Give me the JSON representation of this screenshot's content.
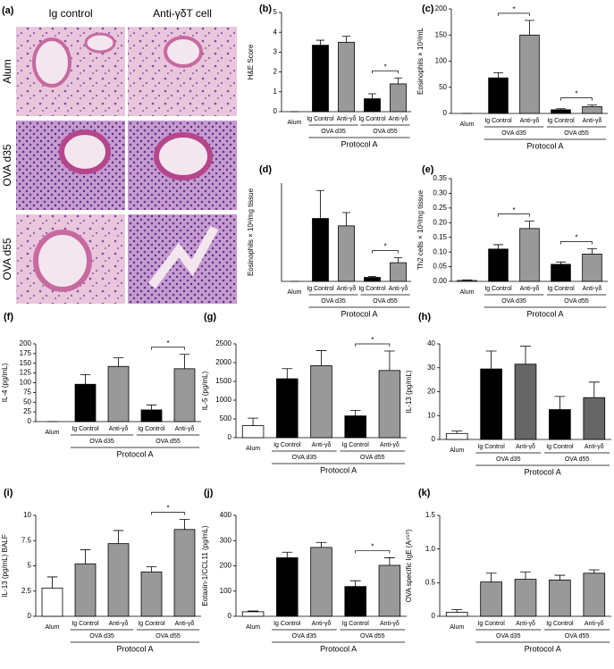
{
  "image_panel": {
    "label": "(a)",
    "columns": [
      "Ig control",
      "Anti-γδT cell"
    ],
    "rows": [
      "Alum",
      "OVA d35",
      "OVA d55"
    ]
  },
  "chart_data": [
    {
      "type": "bar",
      "panel_label": "(b)",
      "ylabel": "H&E Score",
      "categories": [
        "Alum",
        "Ig Control",
        "Anti-γδ",
        "Ig Control",
        "Anti-γδ"
      ],
      "values": [
        0,
        3.35,
        3.5,
        0.65,
        1.4
      ],
      "errors": [
        0,
        0.25,
        0.3,
        0.25,
        0.3
      ],
      "colors": [
        "#ffffff",
        "#000000",
        "#999999",
        "#000000",
        "#999999"
      ],
      "ylim": [
        0,
        5
      ],
      "yticks": [
        0,
        1,
        2,
        3,
        4,
        5
      ],
      "groups": [
        {
          "label": "OVA d35",
          "significance": null
        },
        {
          "label": "OVA d55",
          "significance": "*"
        }
      ],
      "xlabel": "Protocol A"
    },
    {
      "type": "bar",
      "panel_label": "(c)",
      "ylabel": "Eosinophils × 10³/mL",
      "categories": [
        "Alum",
        "Ig Control",
        "Anti-γδ",
        "Ig Control",
        "Anti-γδ"
      ],
      "values": [
        0,
        68,
        150,
        7,
        13
      ],
      "errors": [
        0,
        10,
        28,
        2,
        3
      ],
      "colors": [
        "#ffffff",
        "#000000",
        "#999999",
        "#000000",
        "#999999"
      ],
      "ylim": [
        0,
        200
      ],
      "yticks": [
        0,
        50,
        100,
        150,
        200
      ],
      "groups": [
        {
          "label": "OVA d35",
          "significance": "*"
        },
        {
          "label": "OVA d55",
          "significance": "*"
        }
      ],
      "xlabel": "Protocol A"
    },
    {
      "type": "bar",
      "panel_label": "(d)",
      "ylabel": "Eosinophils × 10³/mg tissue",
      "categories": [
        "Alum",
        "Ig Control",
        "Anti-γδ",
        "Ig Control",
        "Anti-γδ"
      ],
      "values": [
        0,
        128,
        113,
        8,
        38
      ],
      "errors": [
        0,
        57,
        27,
        2,
        10
      ],
      "colors": [
        "#ffffff",
        "#000000",
        "#999999",
        "#000000",
        "#999999"
      ],
      "ylim": [
        0,
        200
      ],
      "groups": [
        {
          "label": "OVA d35",
          "significance": null
        },
        {
          "label": "OVA d55",
          "significance": "*"
        }
      ],
      "xlabel": "Protocol A"
    },
    {
      "type": "bar",
      "panel_label": "(e)",
      "ylabel": "Th2 cells × 10³/mg tissue",
      "categories": [
        "Alum",
        "Ig Control",
        "Anti-γδ",
        "Ig Control",
        "Anti-γδ"
      ],
      "values": [
        0.003,
        0.11,
        0.18,
        0.058,
        0.093
      ],
      "errors": [
        0.002,
        0.015,
        0.025,
        0.008,
        0.018
      ],
      "colors": [
        "#ffffff",
        "#000000",
        "#999999",
        "#000000",
        "#999999"
      ],
      "ylim": [
        0,
        0.35
      ],
      "yticks": [
        {
          "value": 0,
          "label": "0.00"
        },
        {
          "value": 0.05,
          "label": "0.05"
        },
        {
          "value": 0.1,
          "label": "0.10"
        },
        {
          "value": 0.15,
          "label": "0.15"
        },
        {
          "value": 0.2,
          "label": "0.20"
        },
        {
          "value": 0.25,
          "label": "0.25"
        },
        {
          "value": 0.3,
          "label": "0.30"
        },
        {
          "value": 0.35,
          "label": "0.35"
        }
      ],
      "groups": [
        {
          "label": "OVA d35",
          "significance": "*"
        },
        {
          "label": "OVA d55",
          "significance": "*"
        }
      ],
      "xlabel": "Protocol A"
    },
    {
      "type": "bar",
      "panel_label": "(f)",
      "ylabel": "IL-4 (pg/mL)",
      "categories": [
        "Alum",
        "Ig Control",
        "Anti-γδ",
        "Ig Control",
        "Anti-γδ"
      ],
      "values": [
        0,
        96,
        142,
        30,
        136
      ],
      "errors": [
        0,
        25,
        22,
        13,
        37
      ],
      "colors": [
        "#ffffff",
        "#000000",
        "#999999",
        "#000000",
        "#999999"
      ],
      "ylim": [
        0,
        200
      ],
      "yticks": [
        0,
        25,
        50,
        75,
        100,
        125,
        150,
        175,
        200
      ],
      "groups": [
        {
          "label": "OVA d35",
          "significance": null
        },
        {
          "label": "OVA d55",
          "significance": "*"
        }
      ],
      "xlabel": "Protocol A"
    },
    {
      "type": "bar",
      "panel_label": "(g)",
      "ylabel": "IL-5 (pg/mL)",
      "categories": [
        "Alum",
        "Ig Control",
        "Anti-γδ",
        "Ig Control",
        "Anti-γδ"
      ],
      "values": [
        320,
        1570,
        1920,
        580,
        1790
      ],
      "errors": [
        200,
        270,
        400,
        150,
        520
      ],
      "colors": [
        "#ffffff",
        "#000000",
        "#999999",
        "#000000",
        "#999999"
      ],
      "ylim": [
        0,
        2500
      ],
      "yticks": [
        0,
        500,
        1000,
        1500,
        2000,
        2500
      ],
      "groups": [
        {
          "label": "OVA d35",
          "significance": null
        },
        {
          "label": "OVA d55",
          "significance": "*"
        }
      ],
      "xlabel": "Protocol A"
    },
    {
      "type": "bar",
      "panel_label": "(h)",
      "ylabel": "IL-13 (pg/mL)",
      "categories": [
        "Alum",
        "Ig Control",
        "Anti-γδ",
        "Ig Control",
        "Anti-γδ"
      ],
      "values": [
        2.5,
        29.5,
        31.5,
        12.5,
        17.5
      ],
      "errors": [
        1,
        7.5,
        7.5,
        5.5,
        6.5
      ],
      "colors": [
        "#ffffff",
        "#000000",
        "#666666",
        "#000000",
        "#666666"
      ],
      "ylim": [
        0,
        40
      ],
      "yticks": [
        0,
        10,
        20,
        30,
        40
      ],
      "groups": [
        {
          "label": "OVA d35",
          "significance": null
        },
        {
          "label": "OVA d55",
          "significance": null
        }
      ],
      "xlabel": "Protocol A"
    },
    {
      "type": "bar",
      "panel_label": "(i)",
      "ylabel": "IL-13 (pg/mL) BALF",
      "categories": [
        "Alum",
        "Ig Control",
        "Anti-γδ",
        "Ig Control",
        "Anti-γδ"
      ],
      "values": [
        2.8,
        5.2,
        7.2,
        4.4,
        8.6
      ],
      "errors": [
        1.1,
        1.4,
        1.3,
        0.5,
        1.0
      ],
      "colors": [
        "#ffffff",
        "#999999",
        "#999999",
        "#999999",
        "#999999"
      ],
      "ylim": [
        0,
        10
      ],
      "yticks": [
        0,
        2.5,
        5,
        7.5,
        10
      ],
      "groups": [
        {
          "label": "OVA d35",
          "significance": null
        },
        {
          "label": "OVA d55",
          "significance": "*"
        }
      ],
      "xlabel": "Protocol A"
    },
    {
      "type": "bar",
      "panel_label": "(j)",
      "ylabel": "Eotaxin-1/CCL11 (pg/mL)",
      "categories": [
        "Alum",
        "Ig Control",
        "Anti-γδ",
        "Ig Control",
        "Anti-γδ"
      ],
      "values": [
        18,
        232,
        273,
        118,
        202
      ],
      "errors": [
        3,
        22,
        20,
        23,
        30
      ],
      "colors": [
        "#ffffff",
        "#000000",
        "#999999",
        "#000000",
        "#999999"
      ],
      "ylim": [
        0,
        400
      ],
      "yticks": [
        0,
        100,
        200,
        300,
        400
      ],
      "groups": [
        {
          "label": "OVA d35",
          "significance": null
        },
        {
          "label": "OVA d55",
          "significance": "*"
        }
      ],
      "xlabel": "Protocol A"
    },
    {
      "type": "bar",
      "panel_label": "(k)",
      "ylabel": "OVA specific IgE (A⁴⁵⁰)",
      "categories": [
        "Alum",
        "Ig Control",
        "Anti-γδ",
        "Ig Control",
        "Anti-γδ"
      ],
      "values": [
        0.06,
        0.51,
        0.55,
        0.54,
        0.64
      ],
      "errors": [
        0.04,
        0.13,
        0.11,
        0.07,
        0.05
      ],
      "colors": [
        "#ffffff",
        "#999999",
        "#999999",
        "#999999",
        "#999999"
      ],
      "ylim": [
        0,
        1.5
      ],
      "yticks": [
        0,
        0.5,
        {
          "value": 1,
          "label": "1.0"
        },
        1.5
      ],
      "groups": [
        {
          "label": "OVA d35",
          "significance": null
        },
        {
          "label": "OVA d55",
          "significance": null
        }
      ],
      "xlabel": "Protocol A"
    }
  ]
}
